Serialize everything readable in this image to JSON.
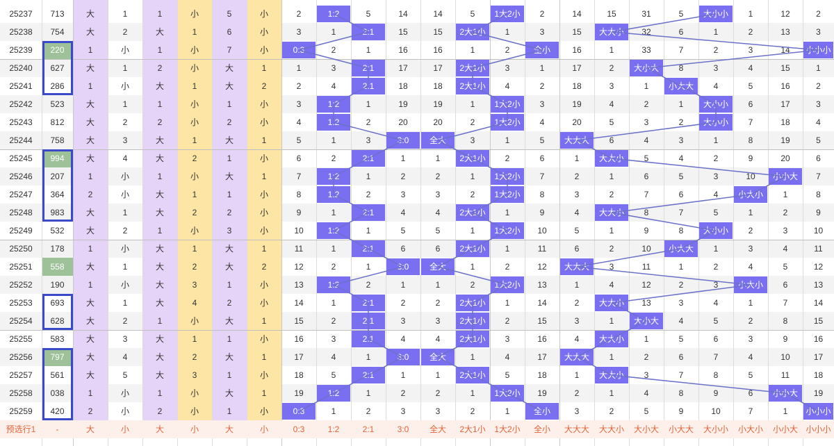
{
  "colors": {
    "purple_fill": "#e5d4f7",
    "yellow_fill": "#fde5a5",
    "green_fill": "#9ec19a",
    "blue_hl": "#7a6ff0",
    "line_color": "#6b71c9",
    "box_color": "#3a49c9",
    "bottom_text": "#e2643a"
  },
  "rows": [
    {
      "issue": "25237",
      "num": "713",
      "c": [
        "大",
        "1",
        "1",
        "小",
        "5",
        "小",
        "2",
        "1:2",
        "5",
        "14",
        "14",
        "5",
        "1大2小",
        "2",
        "14",
        "15",
        "31",
        "5",
        "大小小",
        "1",
        "12",
        "2"
      ],
      "hl": [
        7,
        12,
        18
      ]
    },
    {
      "issue": "25238",
      "num": "754",
      "c": [
        "大",
        "2",
        "大",
        "1",
        "6",
        "小",
        "3",
        "1",
        "2:1",
        "15",
        "15",
        "2大1小",
        "1",
        "3",
        "15",
        "大大小",
        "32",
        "6",
        "1",
        "2",
        "13",
        "3"
      ],
      "hl": [
        8,
        11,
        15
      ]
    },
    {
      "issue": "25239",
      "num": "220",
      "c": [
        "1",
        "小",
        "1",
        "小",
        "7",
        "小",
        "0:3",
        "2",
        "1",
        "16",
        "16",
        "1",
        "2",
        "全小",
        "16",
        "1",
        "33",
        "7",
        "2",
        "3",
        "14",
        "小小小"
      ],
      "hl": [
        6,
        13,
        21
      ]
    },
    {
      "issue": "25240",
      "num": "627",
      "c": [
        "大",
        "1",
        "2",
        "小",
        "大",
        "1",
        "1",
        "3",
        "2:1",
        "17",
        "17",
        "2大1小",
        "3",
        "1",
        "17",
        "2",
        "大小大",
        "8",
        "3",
        "4",
        "15",
        "1"
      ],
      "hl": [
        8,
        11,
        16
      ]
    },
    {
      "issue": "25241",
      "num": "286",
      "c": [
        "1",
        "小",
        "大",
        "1",
        "大",
        "2",
        "2",
        "4",
        "2:1",
        "18",
        "18",
        "2大1小",
        "4",
        "2",
        "18",
        "3",
        "1",
        "小大大",
        "4",
        "5",
        "16",
        "2"
      ],
      "hl": [
        8,
        11,
        17
      ]
    },
    {
      "issue": "25242",
      "num": "523",
      "c": [
        "大",
        "1",
        "1",
        "小",
        "1",
        "小",
        "3",
        "1:2",
        "1",
        "19",
        "19",
        "1",
        "1大2小",
        "3",
        "19",
        "4",
        "2",
        "1",
        "大小小",
        "6",
        "17",
        "3"
      ],
      "hl": [
        7,
        12,
        18
      ]
    },
    {
      "issue": "25243",
      "num": "812",
      "c": [
        "大",
        "2",
        "2",
        "小",
        "2",
        "小",
        "4",
        "1:2",
        "2",
        "20",
        "20",
        "2",
        "1大2小",
        "4",
        "20",
        "5",
        "3",
        "2",
        "大小小",
        "7",
        "18",
        "4"
      ],
      "hl": [
        7,
        12,
        18
      ]
    },
    {
      "issue": "25244",
      "num": "758",
      "c": [
        "大",
        "3",
        "大",
        "1",
        "大",
        "1",
        "5",
        "1",
        "3",
        "3:0",
        "全大",
        "3",
        "1",
        "5",
        "大大大",
        "6",
        "4",
        "3",
        "1",
        "8",
        "19",
        "5"
      ],
      "hl": [
        9,
        10,
        14
      ]
    },
    {
      "issue": "25245",
      "num": "994",
      "c": [
        "大",
        "4",
        "大",
        "2",
        "1",
        "小",
        "6",
        "2",
        "2:1",
        "1",
        "1",
        "2大1小",
        "2",
        "6",
        "1",
        "大大小",
        "5",
        "4",
        "2",
        "9",
        "20",
        "6"
      ],
      "hl": [
        8,
        11,
        15
      ]
    },
    {
      "issue": "25246",
      "num": "207",
      "c": [
        "1",
        "小",
        "1",
        "小",
        "大",
        "1",
        "7",
        "1:2",
        "1",
        "2",
        "2",
        "1",
        "1大2小",
        "7",
        "2",
        "1",
        "6",
        "5",
        "3",
        "10",
        "小小大",
        "7"
      ],
      "hl": [
        7,
        12,
        20
      ]
    },
    {
      "issue": "25247",
      "num": "364",
      "c": [
        "2",
        "小",
        "大",
        "1",
        "1",
        "小",
        "8",
        "1:2",
        "2",
        "3",
        "3",
        "2",
        "1大2小",
        "8",
        "3",
        "2",
        "7",
        "6",
        "4",
        "小大小",
        "1",
        "8"
      ],
      "hl": [
        7,
        12,
        19
      ]
    },
    {
      "issue": "25248",
      "num": "983",
      "c": [
        "大",
        "1",
        "大",
        "2",
        "2",
        "小",
        "9",
        "1",
        "2:1",
        "4",
        "4",
        "2大1小",
        "1",
        "9",
        "4",
        "大大小",
        "8",
        "7",
        "5",
        "1",
        "2",
        "9"
      ],
      "hl": [
        8,
        11,
        15
      ]
    },
    {
      "issue": "25249",
      "num": "532",
      "c": [
        "大",
        "2",
        "1",
        "小",
        "3",
        "小",
        "10",
        "1:2",
        "1",
        "5",
        "5",
        "1",
        "1大2小",
        "10",
        "5",
        "1",
        "9",
        "8",
        "大小小",
        "2",
        "3",
        "10"
      ],
      "hl": [
        7,
        12,
        18
      ]
    },
    {
      "issue": "25250",
      "num": "178",
      "c": [
        "1",
        "小",
        "大",
        "1",
        "大",
        "1",
        "11",
        "1",
        "2:1",
        "6",
        "6",
        "2大1小",
        "1",
        "11",
        "6",
        "2",
        "10",
        "小大大",
        "1",
        "3",
        "4",
        "11"
      ],
      "hl": [
        8,
        11,
        17
      ]
    },
    {
      "issue": "25251",
      "num": "558",
      "c": [
        "大",
        "1",
        "大",
        "2",
        "大",
        "2",
        "12",
        "2",
        "1",
        "3:0",
        "全大",
        "1",
        "2",
        "12",
        "大大大",
        "3",
        "11",
        "1",
        "2",
        "4",
        "5",
        "12"
      ],
      "hl": [
        9,
        10,
        14
      ]
    },
    {
      "issue": "25252",
      "num": "190",
      "c": [
        "1",
        "小",
        "大",
        "3",
        "1",
        "小",
        "13",
        "1:2",
        "2",
        "1",
        "1",
        "2",
        "1大2小",
        "13",
        "1",
        "4",
        "12",
        "2",
        "3",
        "小大小",
        "6",
        "13"
      ],
      "hl": [
        7,
        12,
        19
      ]
    },
    {
      "issue": "25253",
      "num": "693",
      "c": [
        "大",
        "1",
        "大",
        "4",
        "2",
        "小",
        "14",
        "1",
        "2:1",
        "2",
        "2",
        "2大1小",
        "1",
        "14",
        "2",
        "大大小",
        "13",
        "3",
        "4",
        "1",
        "7",
        "14"
      ],
      "hl": [
        8,
        11,
        15
      ]
    },
    {
      "issue": "25254",
      "num": "628",
      "c": [
        "大",
        "2",
        "1",
        "小",
        "大",
        "1",
        "15",
        "2",
        "2:1",
        "3",
        "3",
        "2大1小",
        "2",
        "15",
        "3",
        "1",
        "大小大",
        "4",
        "5",
        "2",
        "8",
        "15"
      ],
      "hl": [
        8,
        11,
        16
      ]
    },
    {
      "issue": "25255",
      "num": "583",
      "c": [
        "大",
        "3",
        "大",
        "1",
        "1",
        "小",
        "16",
        "3",
        "2:1",
        "4",
        "4",
        "2大1小",
        "3",
        "16",
        "4",
        "大大小",
        "1",
        "5",
        "6",
        "3",
        "9",
        "16"
      ],
      "hl": [
        8,
        11,
        15
      ]
    },
    {
      "issue": "25256",
      "num": "797",
      "c": [
        "大",
        "4",
        "大",
        "2",
        "大",
        "1",
        "17",
        "4",
        "1",
        "3:0",
        "全大",
        "1",
        "4",
        "17",
        "大大大",
        "1",
        "2",
        "6",
        "7",
        "4",
        "10",
        "17"
      ],
      "hl": [
        9,
        10,
        14
      ]
    },
    {
      "issue": "25257",
      "num": "561",
      "c": [
        "大",
        "5",
        "大",
        "3",
        "1",
        "小",
        "18",
        "5",
        "2:1",
        "1",
        "1",
        "2大1小",
        "5",
        "18",
        "1",
        "大大小",
        "3",
        "7",
        "8",
        "5",
        "11",
        "18"
      ],
      "hl": [
        8,
        11,
        15
      ]
    },
    {
      "issue": "25258",
      "num": "038",
      "c": [
        "1",
        "小",
        "1",
        "小",
        "大",
        "1",
        "19",
        "1:2",
        "1",
        "2",
        "2",
        "1",
        "1大2小",
        "19",
        "2",
        "1",
        "4",
        "8",
        "9",
        "6",
        "小小大",
        "19"
      ],
      "hl": [
        7,
        12,
        20
      ]
    },
    {
      "issue": "25259",
      "num": "420",
      "c": [
        "2",
        "小",
        "2",
        "小",
        "1",
        "小",
        "0:3",
        "1",
        "2",
        "3",
        "3",
        "2",
        "1",
        "全小",
        "3",
        "2",
        "5",
        "9",
        "10",
        "7",
        "1",
        "小小小"
      ],
      "hl": [
        6,
        13,
        21
      ]
    }
  ],
  "green_rows": [
    2,
    8,
    14,
    19
  ],
  "bottom": {
    "label": "预选行1",
    "num": "-",
    "cells": [
      "大",
      "小",
      "大",
      "小",
      "大",
      "小",
      "0:3",
      "1:2",
      "2:1",
      "3:0",
      "全大",
      "2大1小",
      "1大2小",
      "全小",
      "大大大",
      "大大小",
      "大小大",
      "小大大",
      "大小小",
      "小大小",
      "小小大",
      "小小小"
    ]
  }
}
